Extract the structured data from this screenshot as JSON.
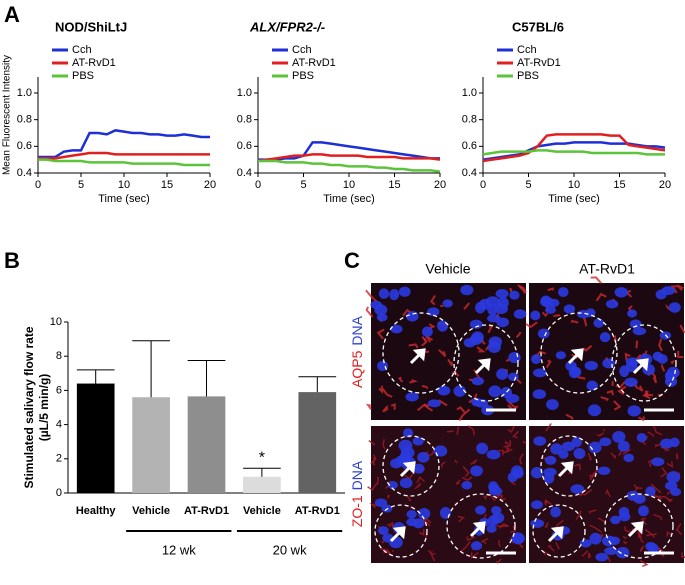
{
  "panel_labels": [
    "A",
    "B",
    "C"
  ],
  "chart_data": [
    {
      "type": "line",
      "title": "NOD/ShiLtJ",
      "xlabel": "Time (sec)",
      "ylabel": "Mean Fluorescent Intensity",
      "x": [
        0,
        1,
        2,
        3,
        4,
        5,
        6,
        7,
        8,
        9,
        10,
        11,
        12,
        13,
        14,
        15,
        16,
        17,
        18,
        19,
        20
      ],
      "xlim": [
        0,
        20
      ],
      "xticks": [
        0,
        5,
        10,
        15,
        20
      ],
      "ylim": [
        0.4,
        1.12
      ],
      "yticks": [
        0.4,
        0.6,
        0.8,
        {
          "value": 1,
          "label": "1.0"
        }
      ],
      "legend": "upper left",
      "series": [
        {
          "name": "Cch",
          "color": "#1f2fd6",
          "values": [
            0.52,
            0.52,
            0.52,
            0.56,
            0.57,
            0.57,
            0.7,
            0.7,
            0.69,
            0.72,
            0.71,
            0.7,
            0.7,
            0.69,
            0.69,
            0.68,
            0.68,
            0.69,
            0.68,
            0.67,
            0.67
          ]
        },
        {
          "name": "AT-RvD1",
          "color": "#e02020",
          "values": [
            0.51,
            0.51,
            0.51,
            0.52,
            0.53,
            0.54,
            0.55,
            0.55,
            0.55,
            0.54,
            0.54,
            0.54,
            0.54,
            0.54,
            0.54,
            0.54,
            0.54,
            0.54,
            0.54,
            0.54,
            0.54
          ]
        },
        {
          "name": "PBS",
          "color": "#5cc43a",
          "values": [
            0.5,
            0.5,
            0.49,
            0.49,
            0.49,
            0.49,
            0.48,
            0.48,
            0.48,
            0.48,
            0.48,
            0.47,
            0.47,
            0.47,
            0.47,
            0.47,
            0.47,
            0.46,
            0.46,
            0.46,
            0.46
          ]
        }
      ]
    },
    {
      "type": "line",
      "title": "ALX/FPR2-/-",
      "xlabel": "Time (sec)",
      "x": [
        0,
        1,
        2,
        3,
        4,
        5,
        6,
        7,
        8,
        9,
        10,
        11,
        12,
        13,
        14,
        15,
        16,
        17,
        18,
        19,
        20
      ],
      "xlim": [
        0,
        20
      ],
      "xticks": [
        0,
        5,
        10,
        15,
        20
      ],
      "ylim": [
        0.4,
        1.12
      ],
      "yticks": [
        0.4,
        0.6,
        0.8,
        {
          "value": 1,
          "label": "1.0"
        }
      ],
      "legend": "upper left",
      "series": [
        {
          "name": "Cch",
          "color": "#1f2fd6",
          "values": [
            0.5,
            0.5,
            0.5,
            0.51,
            0.51,
            0.53,
            0.63,
            0.63,
            0.62,
            0.61,
            0.6,
            0.59,
            0.58,
            0.57,
            0.56,
            0.55,
            0.54,
            0.53,
            0.52,
            0.51,
            0.51
          ]
        },
        {
          "name": "AT-RvD1",
          "color": "#e02020",
          "values": [
            0.49,
            0.5,
            0.51,
            0.52,
            0.53,
            0.53,
            0.54,
            0.54,
            0.53,
            0.53,
            0.53,
            0.53,
            0.52,
            0.52,
            0.52,
            0.52,
            0.51,
            0.51,
            0.51,
            0.51,
            0.5
          ]
        },
        {
          "name": "PBS",
          "color": "#5cc43a",
          "values": [
            0.49,
            0.49,
            0.49,
            0.48,
            0.48,
            0.48,
            0.47,
            0.47,
            0.46,
            0.46,
            0.45,
            0.45,
            0.45,
            0.44,
            0.44,
            0.43,
            0.43,
            0.42,
            0.42,
            0.42,
            0.41
          ]
        }
      ]
    },
    {
      "type": "line",
      "title": "C57BL/6",
      "xlabel": "Time (sec)",
      "x": [
        0,
        1,
        2,
        3,
        4,
        5,
        6,
        7,
        8,
        9,
        10,
        11,
        12,
        13,
        14,
        15,
        16,
        17,
        18,
        19,
        20
      ],
      "xlim": [
        0,
        20
      ],
      "xticks": [
        0,
        5,
        10,
        15,
        20
      ],
      "ylim": [
        0.4,
        1.12
      ],
      "yticks": [
        0.4,
        0.6,
        0.8,
        {
          "value": 1,
          "label": "1.0"
        }
      ],
      "legend": "upper left",
      "series": [
        {
          "name": "Cch",
          "color": "#1f2fd6",
          "values": [
            0.5,
            0.51,
            0.52,
            0.53,
            0.54,
            0.57,
            0.6,
            0.61,
            0.62,
            0.62,
            0.63,
            0.63,
            0.63,
            0.63,
            0.62,
            0.62,
            0.62,
            0.61,
            0.6,
            0.6,
            0.59
          ]
        },
        {
          "name": "AT-RvD1",
          "color": "#e02020",
          "values": [
            0.49,
            0.5,
            0.51,
            0.52,
            0.53,
            0.55,
            0.6,
            0.68,
            0.69,
            0.69,
            0.69,
            0.69,
            0.69,
            0.69,
            0.68,
            0.68,
            0.61,
            0.6,
            0.59,
            0.58,
            0.57
          ]
        },
        {
          "name": "PBS",
          "color": "#5cc43a",
          "values": [
            0.54,
            0.55,
            0.56,
            0.56,
            0.56,
            0.56,
            0.57,
            0.57,
            0.56,
            0.56,
            0.56,
            0.56,
            0.55,
            0.55,
            0.55,
            0.55,
            0.55,
            0.55,
            0.54,
            0.54,
            0.54
          ]
        }
      ]
    },
    {
      "type": "bar",
      "ylabel": [
        "Stimulated salivary flow rate",
        "(µL/5 min/g)"
      ],
      "categories": [
        "Healthy",
        "Vehicle",
        "AT-RvD1",
        "Vehicle",
        "AT-RvD1"
      ],
      "values": [
        6.4,
        5.6,
        5.65,
        0.95,
        5.9
      ],
      "errors": [
        0.8,
        3.3,
        2.1,
        0.5,
        0.9
      ],
      "colors": [
        "#000000",
        "#b3b3b3",
        "#8e8e8e",
        "#dcdcdc",
        "#636363"
      ],
      "ylim": [
        0,
        10
      ],
      "yticks": [
        0,
        2,
        4,
        6,
        8,
        10
      ],
      "group_labels": [
        "12 wk",
        "20 wk"
      ],
      "annotations": [
        {
          "text": "*"
        }
      ]
    }
  ],
  "micrographs": {
    "columns": [
      "Vehicle",
      "AT-RvD1"
    ],
    "rows": [
      {
        "stain": "AQP5",
        "counter": "DNA"
      },
      {
        "stain": "ZO-1",
        "counter": "DNA"
      }
    ]
  }
}
